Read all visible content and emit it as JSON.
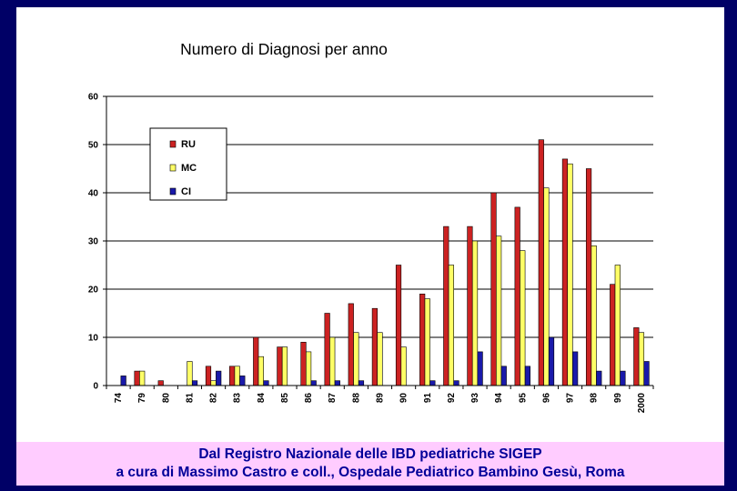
{
  "chart_data": {
    "type": "bar",
    "title": "Numero di Diagnosi per anno",
    "xlabel": "",
    "ylabel": "",
    "ylim": [
      0,
      60
    ],
    "yticks": [
      0,
      10,
      20,
      30,
      40,
      50,
      60
    ],
    "grid": true,
    "legend_position": "top-left",
    "categories": [
      "74",
      "79",
      "80",
      "81",
      "82",
      "83",
      "84",
      "85",
      "86",
      "87",
      "88",
      "89",
      "90",
      "91",
      "92",
      "93",
      "94",
      "95",
      "96",
      "97",
      "98",
      "99",
      "2000"
    ],
    "series": [
      {
        "name": "RU",
        "color": "#cc2222",
        "values": [
          0,
          3,
          1,
          0,
          4,
          4,
          10,
          8,
          9,
          15,
          17,
          16,
          25,
          19,
          33,
          33,
          40,
          37,
          51,
          47,
          45,
          21,
          12
        ]
      },
      {
        "name": "MC",
        "color": "#ffff66",
        "values": [
          0,
          3,
          0,
          5,
          1,
          4,
          6,
          8,
          7,
          10,
          11,
          11,
          8,
          18,
          25,
          30,
          31,
          28,
          41,
          46,
          29,
          25,
          11
        ]
      },
      {
        "name": "CI",
        "color": "#1a1aaa",
        "values": [
          2,
          0,
          0,
          1,
          3,
          2,
          1,
          0,
          1,
          1,
          1,
          0,
          0,
          1,
          1,
          7,
          4,
          4,
          10,
          7,
          3,
          3,
          5
        ]
      }
    ]
  },
  "caption": {
    "line1": "Dal Registro Nazionale delle IBD pediatriche SIGEP",
    "line2": "a cura di Massimo Castro e coll., Ospedale Pediatrico Bambino Gesù, Roma"
  }
}
